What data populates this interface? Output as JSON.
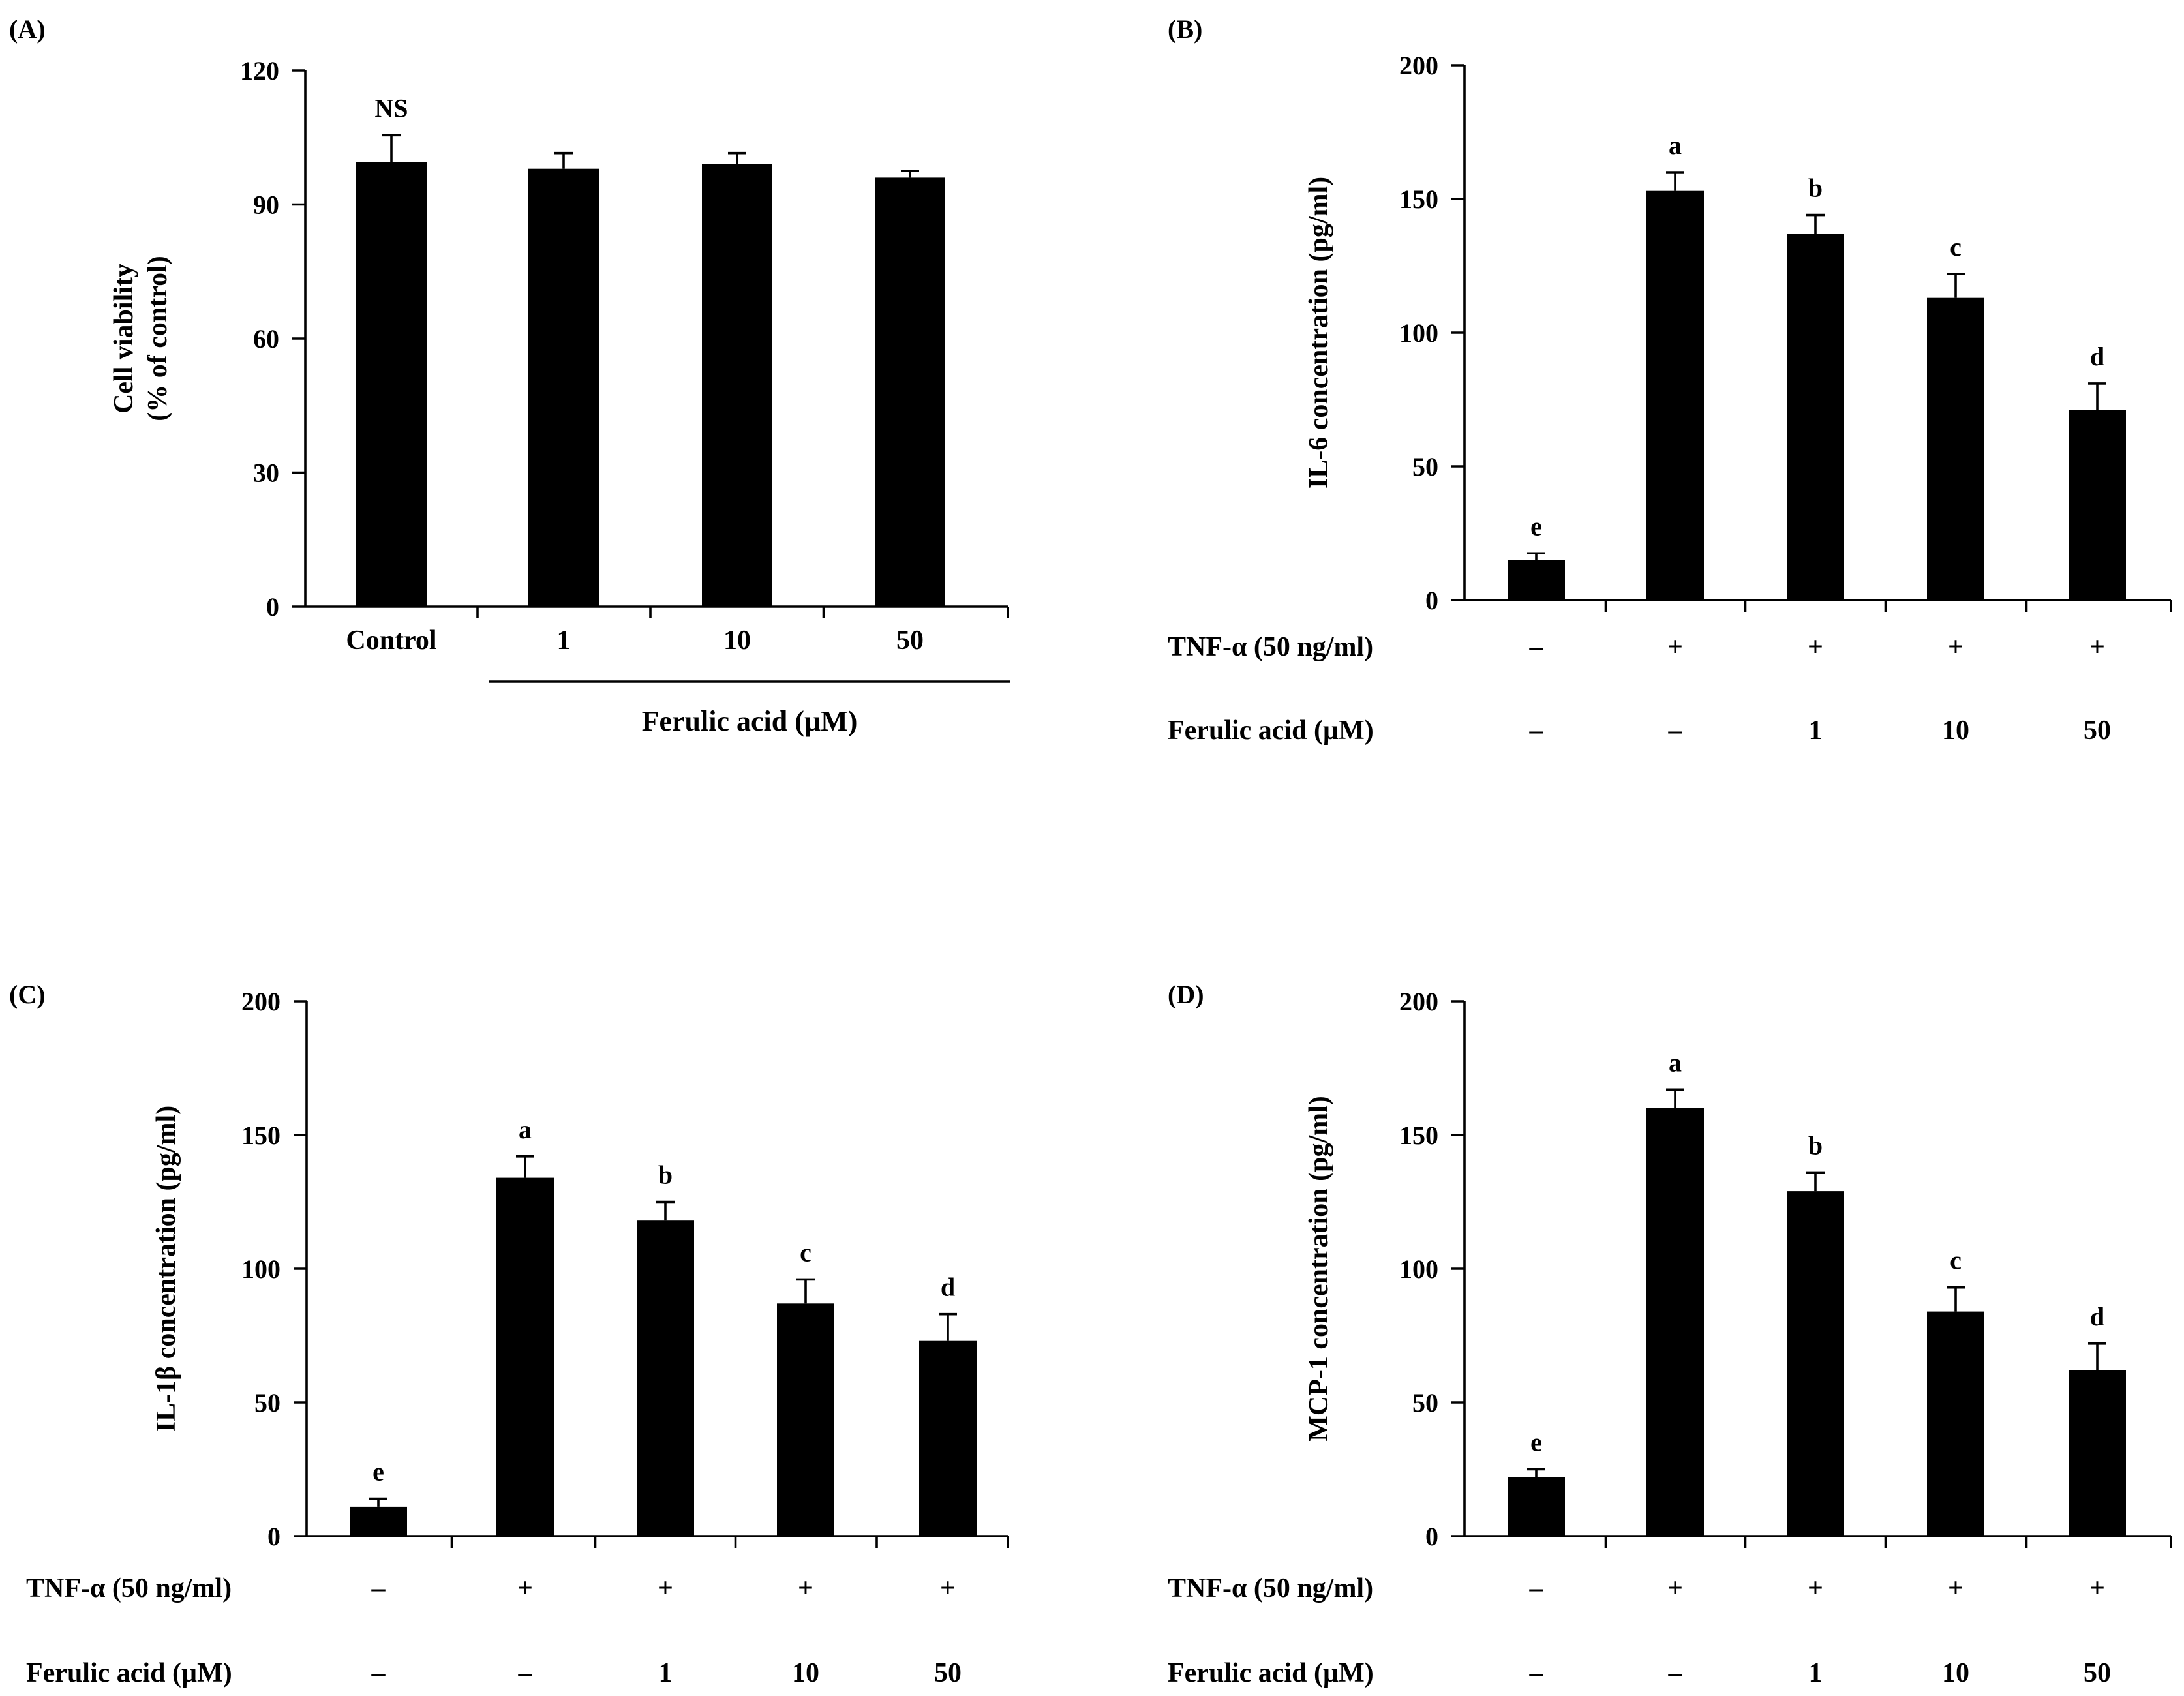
{
  "chart_data": [
    {
      "type": "bar",
      "panel_label": "(A)",
      "title": "",
      "ylabel_line1": "Cell viability",
      "ylabel_line2": "(% of control)",
      "ylim": [
        0,
        120
      ],
      "yticks": [
        "0",
        "30",
        "60",
        "90",
        "120"
      ],
      "categories": [
        "Control",
        "1",
        "10",
        "50"
      ],
      "group_label": "Ferulic acid (µM)",
      "values": [
        99.5,
        98,
        99,
        96
      ],
      "errors": [
        6,
        3.5,
        2.5,
        1.5
      ],
      "annotations": [
        "NS",
        "",
        "",
        ""
      ]
    },
    {
      "type": "bar",
      "panel_label": "(B)",
      "ylabel": "IL-6 concentration (pg/ml)",
      "ylim": [
        0,
        200
      ],
      "yticks": [
        "0",
        "50",
        "100",
        "150",
        "200"
      ],
      "row1_label": "TNF-α (50 ng/ml)",
      "row1": [
        "–",
        "+",
        "+",
        "+",
        "+"
      ],
      "row2_label": "Ferulic acid (µM)",
      "row2": [
        "–",
        "–",
        "1",
        "10",
        "50"
      ],
      "values": [
        15,
        153,
        137,
        113,
        71
      ],
      "errors": [
        2.5,
        7,
        7,
        9,
        10
      ],
      "annotations": [
        "e",
        "a",
        "b",
        "c",
        "d"
      ]
    },
    {
      "type": "bar",
      "panel_label": "(C)",
      "ylabel": "IL-1β concentration (pg/ml)",
      "ylim": [
        0,
        200
      ],
      "yticks": [
        "0",
        "50",
        "100",
        "150",
        "200"
      ],
      "row1_label": "TNF-α (50 ng/ml)",
      "row1": [
        "–",
        "+",
        "+",
        "+",
        "+"
      ],
      "row2_label": "Ferulic acid (µM)",
      "row2": [
        "–",
        "–",
        "1",
        "10",
        "50"
      ],
      "values": [
        11,
        134,
        118,
        87,
        73
      ],
      "errors": [
        3,
        8,
        7,
        9,
        10
      ],
      "annotations": [
        "e",
        "a",
        "b",
        "c",
        "d"
      ]
    },
    {
      "type": "bar",
      "panel_label": "(D)",
      "ylabel": "MCP-1 concentration (pg/ml)",
      "ylim": [
        0,
        200
      ],
      "yticks": [
        "0",
        "50",
        "100",
        "150",
        "200"
      ],
      "row1_label": "TNF-α (50 ng/ml)",
      "row1": [
        "–",
        "+",
        "+",
        "+",
        "+"
      ],
      "row2_label": "Ferulic acid (µM)",
      "row2": [
        "–",
        "–",
        "1",
        "10",
        "50"
      ],
      "values": [
        22,
        160,
        129,
        84,
        62
      ],
      "errors": [
        3,
        7,
        7,
        9,
        10
      ],
      "annotations": [
        "e",
        "a",
        "b",
        "c",
        "d"
      ]
    }
  ]
}
